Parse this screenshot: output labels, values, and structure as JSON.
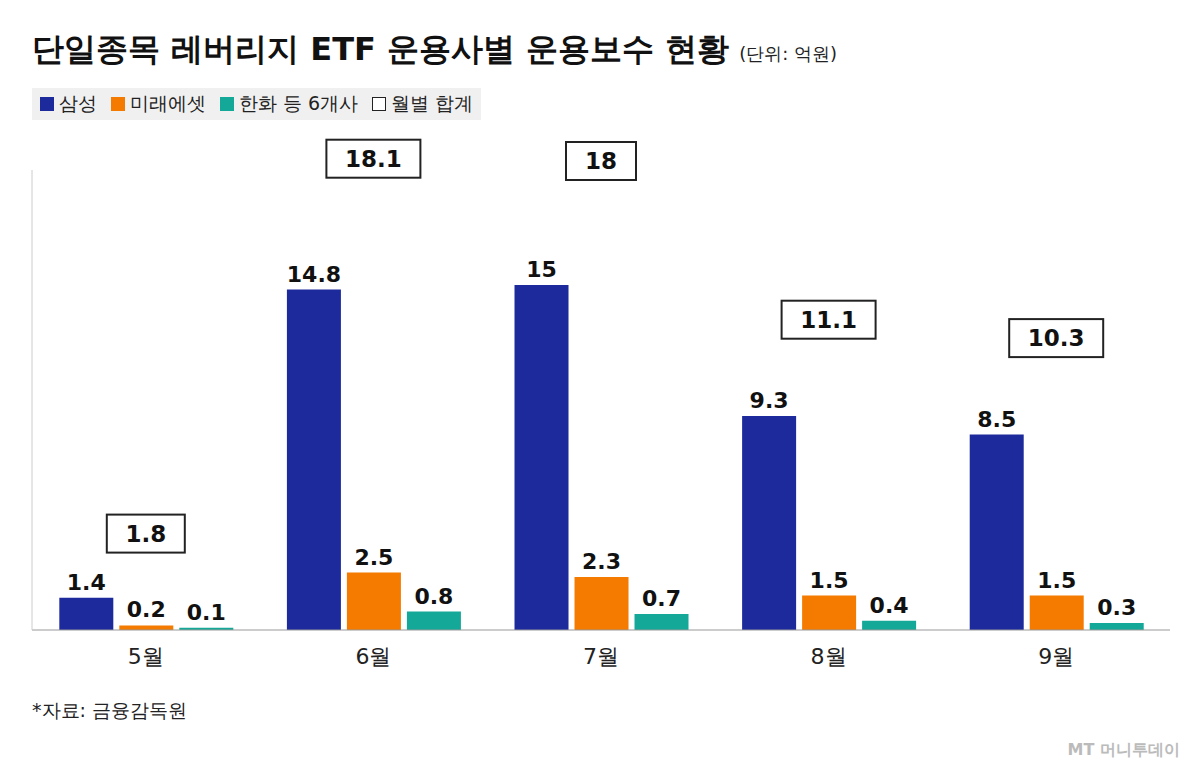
{
  "chart_data": {
    "type": "bar",
    "title": "단일종목 레버리지 ETF 운용사별 운용보수 현황",
    "subtitle": "(단위: 억원)",
    "categories": [
      "5월",
      "6월",
      "7월",
      "8월",
      "9월"
    ],
    "series": [
      {
        "name": "삼성",
        "color": "#1c2a9c",
        "values": [
          1.4,
          14.8,
          15,
          9.3,
          8.5
        ]
      },
      {
        "name": "미래에셋",
        "color": "#f47b00",
        "values": [
          0.2,
          2.5,
          2.3,
          1.5,
          1.5
        ]
      },
      {
        "name": "한화 등 6개사",
        "color": "#14a898",
        "values": [
          0.1,
          0.8,
          0.7,
          0.4,
          0.3
        ]
      }
    ],
    "totals": {
      "name": "월별 합계",
      "values": [
        1.8,
        18.1,
        18,
        11.1,
        10.3
      ]
    },
    "ylim": [
      0,
      20
    ],
    "grid": false,
    "tick_labels": "x",
    "data_labels": true,
    "legend": "top-left",
    "source": "*자료: 금융감독원",
    "credit": "MT 머니투데이"
  }
}
